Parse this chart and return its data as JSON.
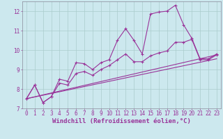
{
  "background_color": "#cce8ee",
  "grid_color": "#aacccc",
  "line_color": "#993399",
  "xlabel": "Windchill (Refroidissement éolien,°C)",
  "xlim": [
    -0.5,
    23.5
  ],
  "ylim": [
    7,
    12.5
  ],
  "yticks": [
    7,
    8,
    9,
    10,
    11,
    12
  ],
  "xticks": [
    0,
    1,
    2,
    3,
    4,
    5,
    6,
    7,
    8,
    9,
    10,
    11,
    12,
    13,
    14,
    15,
    16,
    17,
    18,
    19,
    20,
    21,
    22,
    23
  ],
  "xlabel_fontsize": 6.5,
  "tick_fontsize": 5.5,
  "line_width": 0.8,
  "marker_size": 3.0,
  "line1_x": [
    0,
    1,
    2,
    3,
    4,
    5,
    6,
    7,
    8,
    9,
    10,
    11,
    12,
    13,
    14,
    15,
    16,
    17,
    18,
    19,
    20,
    21,
    22,
    23
  ],
  "line1_y": [
    7.5,
    8.2,
    7.3,
    7.6,
    8.5,
    8.4,
    9.35,
    9.3,
    9.0,
    9.35,
    9.5,
    10.5,
    11.1,
    10.5,
    9.8,
    11.85,
    11.95,
    12.0,
    12.3,
    11.3,
    10.6,
    9.55,
    9.55,
    9.8
  ],
  "line2_x": [
    0,
    1,
    2,
    3,
    4,
    5,
    6,
    7,
    8,
    9,
    10,
    11,
    12,
    13,
    14,
    15,
    16,
    17,
    18,
    19,
    20,
    21,
    22,
    23
  ],
  "line2_y": [
    7.5,
    8.2,
    7.3,
    7.6,
    8.3,
    8.2,
    8.8,
    8.9,
    8.7,
    9.0,
    9.2,
    9.5,
    9.8,
    9.4,
    9.4,
    9.7,
    9.85,
    9.95,
    10.4,
    10.4,
    10.55,
    9.5,
    9.5,
    9.75
  ],
  "line3_x": [
    0,
    23
  ],
  "line3_y": [
    7.5,
    9.75
  ],
  "line4_x": [
    0,
    23
  ],
  "line4_y": [
    7.5,
    9.55
  ]
}
